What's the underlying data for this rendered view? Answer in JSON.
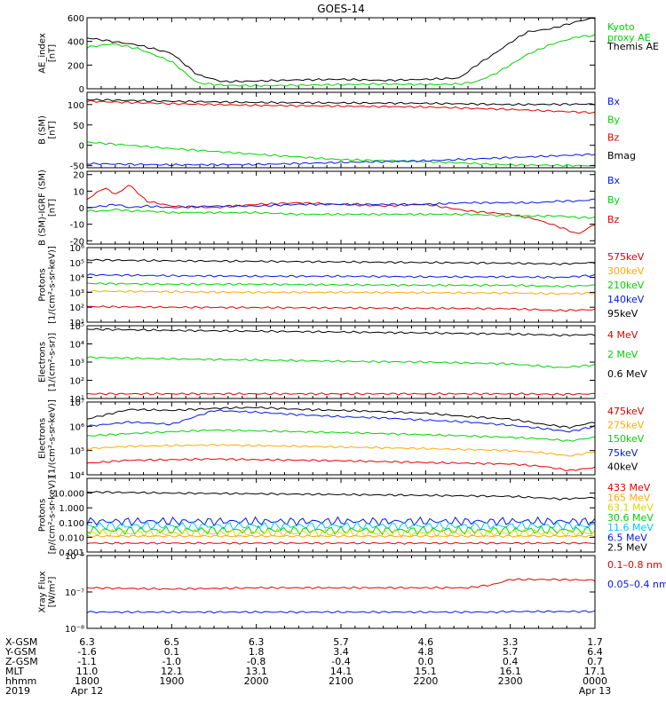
{
  "title": "GOES-14",
  "colors": {
    "black": "#000000",
    "green": "#00d400",
    "red": "#e00000",
    "blue": "#0018e8",
    "orange": "#ffaa00",
    "cyan": "#00c8ff",
    "yellow": "#d8d800"
  },
  "chart_data": [
    {
      "type": "line",
      "id": "ae",
      "ylabel": "AE_index\n[nT]",
      "yscale": "linear",
      "ylim": [
        0,
        600
      ],
      "yticks": [
        "600",
        "400",
        "200",
        "0"
      ],
      "ytick_values": [
        600,
        400,
        200,
        0
      ],
      "legend": [
        {
          "label": "Kyoto\nproxy AE",
          "color": "green"
        },
        {
          "label": "Themis AE",
          "color": "black"
        }
      ],
      "x": [
        0,
        0.3,
        0.6,
        1.0,
        1.3,
        1.6,
        2.0,
        2.5,
        3.0,
        3.5,
        4.0,
        4.4,
        4.6,
        4.8,
        5.0,
        5.2,
        5.5,
        5.8,
        6.0
      ],
      "series": [
        {
          "name": "Themis AE",
          "color": "black",
          "values": [
            430,
            400,
            370,
            300,
            120,
            60,
            65,
            75,
            80,
            70,
            80,
            90,
            200,
            290,
            390,
            480,
            510,
            570,
            600
          ]
        },
        {
          "name": "Kyoto proxy AE",
          "color": "green",
          "values": [
            350,
            380,
            340,
            230,
            50,
            30,
            25,
            30,
            35,
            40,
            35,
            40,
            60,
            120,
            200,
            290,
            380,
            440,
            450
          ]
        }
      ]
    },
    {
      "type": "line",
      "id": "bsm",
      "ylabel": "B (SM)\n[nT]",
      "yscale": "linear",
      "ylim": [
        -55,
        130
      ],
      "yticks": [
        "100",
        "50",
        "0",
        "-50"
      ],
      "ytick_values": [
        100,
        50,
        0,
        -50
      ],
      "legend": [
        {
          "label": "Bx",
          "color": "blue"
        },
        {
          "label": "By",
          "color": "green"
        },
        {
          "label": "Bz",
          "color": "red"
        },
        {
          "label": "Bmag",
          "color": "black"
        }
      ],
      "x": [
        0,
        1,
        2,
        3,
        4,
        5,
        6
      ],
      "series": [
        {
          "name": "Bmag",
          "color": "black",
          "values": [
            112,
            108,
            105,
            104,
            103,
            100,
            101
          ]
        },
        {
          "name": "Bz",
          "color": "red",
          "values": [
            108,
            102,
            98,
            96,
            94,
            88,
            80
          ]
        },
        {
          "name": "By",
          "color": "green",
          "values": [
            8,
            -8,
            -22,
            -35,
            -40,
            -48,
            -50
          ]
        },
        {
          "name": "Bx",
          "color": "blue",
          "values": [
            -45,
            -48,
            -47,
            -42,
            -38,
            -30,
            -22
          ]
        }
      ]
    },
    {
      "type": "line",
      "id": "bdiff",
      "ylabel": "B (SM)-IGRF (SM)\n[nT]",
      "yscale": "linear",
      "ylim": [
        -22,
        22
      ],
      "yticks": [
        "20",
        "10",
        "0",
        "-10",
        "-20"
      ],
      "ytick_values": [
        20,
        10,
        0,
        -10,
        -20
      ],
      "legend": [
        {
          "label": "Bx",
          "color": "blue"
        },
        {
          "label": "By",
          "color": "green"
        },
        {
          "label": "Bz",
          "color": "red"
        }
      ],
      "x": [
        0,
        0.2,
        0.35,
        0.5,
        0.7,
        1.0,
        1.5,
        2.0,
        2.5,
        3.0,
        3.5,
        4.0,
        4.5,
        5.0,
        5.3,
        5.6,
        5.8,
        6.0
      ],
      "series": [
        {
          "name": "Bz",
          "color": "red",
          "values": [
            5,
            12,
            8,
            14,
            4,
            1,
            0,
            2,
            3,
            2,
            1,
            2,
            -2,
            -4,
            -7,
            -12,
            -16,
            -10
          ]
        },
        {
          "name": "By",
          "color": "green",
          "values": [
            -2,
            -2,
            -1,
            -2,
            -2,
            -3,
            -3,
            -3,
            -4,
            -4,
            -4,
            -4,
            -4,
            -5,
            -5,
            -5,
            -6,
            -6
          ]
        },
        {
          "name": "Bx",
          "color": "blue",
          "values": [
            0,
            1,
            2,
            0,
            1,
            0,
            1,
            1,
            2,
            2,
            2,
            2,
            3,
            3,
            3,
            4,
            4,
            5
          ]
        }
      ]
    },
    {
      "type": "line",
      "id": "protons",
      "ylabel": "Protons\n[1/(cm²-s-sr-keV)]",
      "yscale": "log",
      "ylim": [
        10,
        1000000
      ],
      "yticks": [
        "10⁶",
        "10⁵",
        "10⁴",
        "10³",
        "10²",
        "10¹"
      ],
      "ytick_values": [
        1000000,
        100000,
        10000,
        1000,
        100,
        10
      ],
      "legend": [
        {
          "label": "575keV",
          "color": "red"
        },
        {
          "label": "300keV",
          "color": "orange"
        },
        {
          "label": "210keV",
          "color": "green"
        },
        {
          "label": "140keV",
          "color": "blue"
        },
        {
          "label": "95keV",
          "color": "black"
        }
      ],
      "x": [
        0,
        1,
        2,
        3,
        4,
        5,
        5.6,
        6
      ],
      "series": [
        {
          "name": "95keV",
          "color": "black",
          "values": [
            150000,
            130000,
            120000,
            110000,
            100000,
            90000,
            80000,
            100000
          ]
        },
        {
          "name": "140keV",
          "color": "blue",
          "values": [
            15000,
            13000,
            12000,
            12000,
            11000,
            11000,
            10000,
            14000
          ]
        },
        {
          "name": "210keV",
          "color": "green",
          "values": [
            4000,
            3500,
            3500,
            3200,
            3000,
            3000,
            2500,
            3000
          ]
        },
        {
          "name": "300keV",
          "color": "orange",
          "values": [
            1200,
            1100,
            1000,
            1000,
            950,
            900,
            800,
            900
          ]
        },
        {
          "name": "575keV",
          "color": "red",
          "values": [
            110,
            100,
            95,
            90,
            85,
            80,
            60,
            70
          ]
        }
      ]
    },
    {
      "type": "line",
      "id": "electrons_mev",
      "ylabel": "Electrons\n[1/(cm²-s-sr)]",
      "yscale": "log",
      "ylim": [
        10,
        100000
      ],
      "yticks": [
        "10⁵",
        "10⁴",
        "10³",
        "10²",
        "10¹"
      ],
      "ytick_values": [
        100000,
        10000,
        1000,
        100,
        10
      ],
      "legend": [
        {
          "label": "4 MeV",
          "color": "red"
        },
        {
          "label": "2 MeV",
          "color": "green"
        },
        {
          "label": "0.6 MeV",
          "color": "black"
        }
      ],
      "x": [
        0,
        1,
        2,
        3,
        4,
        5,
        5.6,
        6
      ],
      "series": [
        {
          "name": "0.6 MeV",
          "color": "black",
          "values": [
            65000,
            55000,
            50000,
            45000,
            40000,
            35000,
            30000,
            32000
          ]
        },
        {
          "name": "2 MeV",
          "color": "green",
          "values": [
            1800,
            1500,
            1300,
            1100,
            1000,
            800,
            500,
            700
          ]
        },
        {
          "name": "4 MeV",
          "color": "red",
          "values": [
            18,
            18,
            18,
            18,
            18,
            18,
            17,
            18
          ]
        }
      ]
    },
    {
      "type": "line",
      "id": "electrons_kev",
      "ylabel": "Electrons\n[1/(cm²-s-sr-keV)]",
      "yscale": "log",
      "ylim": [
        10000,
        10000000
      ],
      "yticks": [
        "10⁷",
        "10⁶",
        "10⁵",
        "10⁴"
      ],
      "ytick_values": [
        10000000,
        1000000,
        100000,
        10000
      ],
      "legend": [
        {
          "label": "475keV",
          "color": "red"
        },
        {
          "label": "275keV",
          "color": "orange"
        },
        {
          "label": "150keV",
          "color": "green"
        },
        {
          "label": "75keV",
          "color": "blue"
        },
        {
          "label": "40keV",
          "color": "black"
        }
      ],
      "x": [
        0,
        0.5,
        1.0,
        1.5,
        2.0,
        2.5,
        3.0,
        3.5,
        4.0,
        4.5,
        5.0,
        5.4,
        5.7,
        6.0
      ],
      "series": [
        {
          "name": "40keV",
          "color": "black",
          "values": [
            2000000,
            5000000,
            4500000,
            5500000,
            6000000,
            5000000,
            4500000,
            4000000,
            3500000,
            2500000,
            2000000,
            1200000,
            900000,
            1500000
          ]
        },
        {
          "name": "75keV",
          "color": "blue",
          "values": [
            1000000,
            1500000,
            1200000,
            4500000,
            3800000,
            3000000,
            2500000,
            2200000,
            1800000,
            1500000,
            1100000,
            800000,
            600000,
            1000000
          ]
        },
        {
          "name": "150keV",
          "color": "green",
          "values": [
            400000,
            500000,
            600000,
            700000,
            650000,
            600000,
            550000,
            500000,
            450000,
            400000,
            350000,
            300000,
            250000,
            350000
          ]
        },
        {
          "name": "275keV",
          "color": "orange",
          "values": [
            120000,
            150000,
            160000,
            170000,
            160000,
            150000,
            140000,
            130000,
            120000,
            110000,
            100000,
            80000,
            60000,
            90000
          ]
        },
        {
          "name": "475keV",
          "color": "red",
          "values": [
            30000,
            40000,
            42000,
            45000,
            42000,
            40000,
            38000,
            35000,
            32000,
            30000,
            28000,
            22000,
            15000,
            20000
          ]
        }
      ]
    },
    {
      "type": "line",
      "id": "protons_mev",
      "ylabel": "Protons\n[p/(cm²-s-sr-keV)]",
      "yscale": "log",
      "ylim": [
        0.001,
        100
      ],
      "yticks": [
        "10.000",
        "1.000",
        "0.100",
        "0.010",
        "0.001"
      ],
      "ytick_values": [
        10,
        1,
        0.1,
        0.01,
        0.001
      ],
      "legend": [
        {
          "label": "433 MeV",
          "color": "red"
        },
        {
          "label": "165 MeV",
          "color": "orange"
        },
        {
          "label": "63.1 MeV",
          "color": "yellow"
        },
        {
          "label": "30.6 MeV",
          "color": "green"
        },
        {
          "label": "11.6 MeV",
          "color": "cyan"
        },
        {
          "label": "6.5 MeV",
          "color": "blue"
        },
        {
          "label": "2.5 MeV",
          "color": "black"
        }
      ],
      "x": [
        0,
        1,
        2,
        3,
        4,
        5,
        5.6,
        6
      ],
      "series": [
        {
          "name": "2.5 MeV",
          "color": "black",
          "values": [
            12,
            10,
            9,
            8,
            7,
            6,
            4,
            5
          ]
        },
        {
          "name": "6.5 MeV",
          "color": "blue",
          "values": [
            0.12,
            0.12,
            0.12,
            0.12,
            0.12,
            0.12,
            0.12,
            0.12
          ]
        },
        {
          "name": "11.6 MeV",
          "color": "cyan",
          "values": [
            0.06,
            0.06,
            0.06,
            0.06,
            0.06,
            0.06,
            0.06,
            0.06
          ]
        },
        {
          "name": "30.6 MeV",
          "color": "green",
          "values": [
            0.03,
            0.03,
            0.03,
            0.03,
            0.03,
            0.03,
            0.03,
            0.03
          ]
        },
        {
          "name": "63.1 MeV",
          "color": "yellow",
          "values": [
            0.02,
            0.02,
            0.02,
            0.02,
            0.02,
            0.02,
            0.02,
            0.02
          ]
        },
        {
          "name": "165 MeV",
          "color": "orange",
          "values": [
            0.012,
            0.012,
            0.012,
            0.012,
            0.012,
            0.012,
            0.012,
            0.012
          ]
        },
        {
          "name": "433 MeV",
          "color": "red",
          "values": [
            0.004,
            0.004,
            0.004,
            0.004,
            0.004,
            0.004,
            0.004,
            0.004
          ]
        }
      ]
    },
    {
      "type": "line",
      "id": "xray",
      "ylabel": "Xray Flux\n[W/m²]",
      "yscale": "log",
      "ylim": [
        1e-08,
        1e-06
      ],
      "yticks": [
        "10⁻⁶",
        "10⁻⁷",
        "10⁻⁸"
      ],
      "ytick_values": [
        1e-06,
        1e-07,
        1e-08
      ],
      "legend": [
        {
          "label": "0.1–0.8 nm",
          "color": "red"
        },
        {
          "label": "0.05–0.4 nm",
          "color": "blue"
        }
      ],
      "x": [
        0,
        1,
        2,
        3,
        4,
        4.5,
        4.8,
        5.0,
        5.5,
        6.0
      ],
      "series": [
        {
          "name": "0.1–0.8 nm",
          "color": "red",
          "values": [
            1.3e-07,
            1.2e-07,
            1.3e-07,
            1.3e-07,
            1.3e-07,
            1.3e-07,
            1.6e-07,
            2.2e-07,
            2.2e-07,
            2.1e-07
          ]
        },
        {
          "name": "0.05–0.4 nm",
          "color": "blue",
          "values": [
            2.8e-08,
            2.8e-08,
            2.8e-08,
            2.8e-08,
            2.8e-08,
            2.8e-08,
            2.8e-08,
            2.9e-08,
            2.9e-08,
            2.9e-08
          ]
        }
      ]
    }
  ],
  "x_axis": {
    "row_labels": [
      "X-GSM",
      "Y-GSM",
      "Z-GSM",
      "MLT",
      "hhmm",
      "2019"
    ],
    "columns": [
      [
        "6.3",
        "-1.6",
        "-1.1",
        "11.0",
        "1800",
        "Apr 12"
      ],
      [
        "6.5",
        "0.1",
        "-1.0",
        "12.1",
        "1900",
        ""
      ],
      [
        "6.3",
        "1.8",
        "-0.8",
        "13.1",
        "2000",
        ""
      ],
      [
        "5.7",
        "3.4",
        "-0.4",
        "14.1",
        "2100",
        ""
      ],
      [
        "4.6",
        "4.8",
        "0.0",
        "15.1",
        "2200",
        ""
      ],
      [
        "3.3",
        "5.7",
        "0.4",
        "16.1",
        "2300",
        ""
      ],
      [
        "1.7",
        "6.4",
        "0.7",
        "17.1",
        "0000",
        "Apr 13"
      ]
    ]
  }
}
